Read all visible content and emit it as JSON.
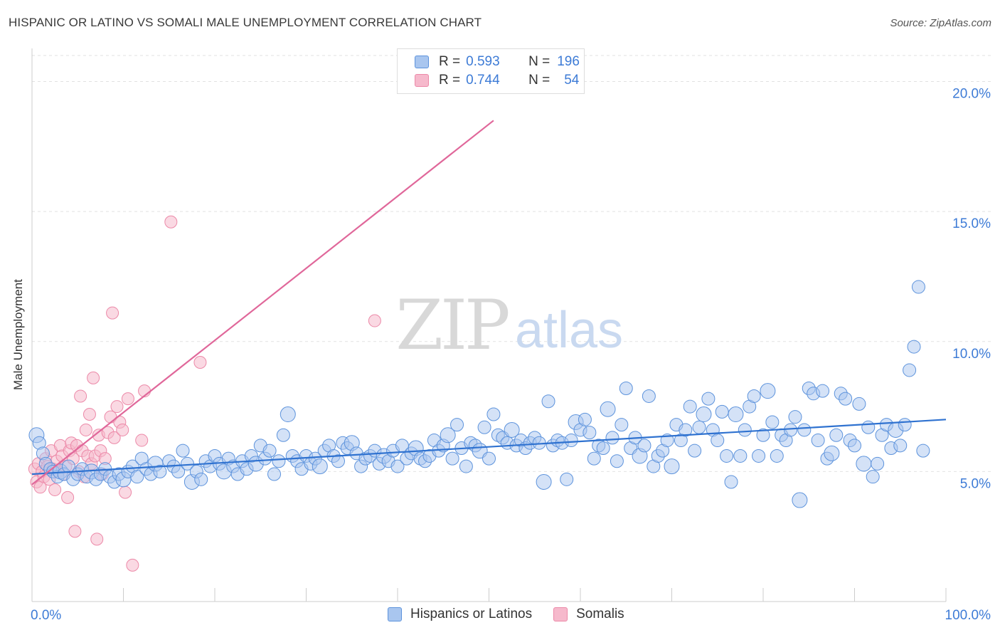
{
  "title": "HISPANIC OR LATINO VS SOMALI MALE UNEMPLOYMENT CORRELATION CHART",
  "source": "Source: ZipAtlas.com",
  "watermark": {
    "zip": "ZIP",
    "atlas": "atlas"
  },
  "legend": {
    "rows": [
      {
        "r_label": "R =",
        "r_value": "0.593",
        "n_label": "N =",
        "n_value": "196"
      },
      {
        "r_label": "R =",
        "r_value": "0.744",
        "n_label": "N =",
        "n_value": "54"
      }
    ]
  },
  "bottom_legend": [
    "Hispanics or Latinos",
    "Somalis"
  ],
  "colors": {
    "blue_fill": "#a9c6ef",
    "blue_stroke": "#5d93dc",
    "blue_line": "#2f72d0",
    "pink_fill": "#f6b9cc",
    "pink_stroke": "#ec89a8",
    "pink_line": "#e0679a",
    "tick_label": "#3d7bd6",
    "grid": "#e2e2e2"
  },
  "chart_data": {
    "type": "scatter",
    "title": "HISPANIC OR LATINO VS SOMALI MALE UNEMPLOYMENT CORRELATION CHART",
    "xlabel": "",
    "ylabel": "Male Unemployment",
    "xlim": [
      0,
      100
    ],
    "ylim": [
      0,
      21
    ],
    "x_tick_labels": [
      "0.0%",
      "100.0%"
    ],
    "y_ticks": [
      5,
      10,
      15,
      20
    ],
    "y_tick_labels": [
      "5.0%",
      "10.0%",
      "15.0%",
      "20.0%"
    ],
    "grid": true,
    "series": [
      {
        "name": "Hispanics or Latinos",
        "R": 0.593,
        "N": 196,
        "trend": {
          "x": [
            0,
            100
          ],
          "y": [
            4.9,
            7.0
          ]
        },
        "points": [
          [
            0.5,
            6.4
          ],
          [
            0.8,
            6.1
          ],
          [
            1.2,
            5.7
          ],
          [
            1.5,
            5.3
          ],
          [
            2,
            5.1
          ],
          [
            2.3,
            5.0
          ],
          [
            2.8,
            4.8
          ],
          [
            3.1,
            5.0
          ],
          [
            3.5,
            4.9
          ],
          [
            4,
            5.2
          ],
          [
            4.5,
            4.7
          ],
          [
            5,
            4.9
          ],
          [
            5.5,
            5.1
          ],
          [
            6,
            4.8
          ],
          [
            6.5,
            5.0
          ],
          [
            7,
            4.7
          ],
          [
            7.5,
            4.9
          ],
          [
            8,
            5.1
          ],
          [
            8.5,
            4.8
          ],
          [
            9,
            4.6
          ],
          [
            9.5,
            4.9
          ],
          [
            10,
            4.7
          ],
          [
            10.5,
            5.0
          ],
          [
            11,
            5.2
          ],
          [
            11.5,
            4.8
          ],
          [
            12,
            5.5
          ],
          [
            12.5,
            5.1
          ],
          [
            13,
            4.9
          ],
          [
            13.5,
            5.3
          ],
          [
            14,
            5.0
          ],
          [
            15,
            5.4
          ],
          [
            15.5,
            5.2
          ],
          [
            16,
            5.0
          ],
          [
            16.5,
            5.8
          ],
          [
            17,
            5.3
          ],
          [
            17.5,
            4.6
          ],
          [
            18,
            5.0
          ],
          [
            18.5,
            4.7
          ],
          [
            19,
            5.4
          ],
          [
            19.5,
            5.2
          ],
          [
            20,
            5.6
          ],
          [
            20.5,
            5.3
          ],
          [
            21,
            5.0
          ],
          [
            21.5,
            5.5
          ],
          [
            22,
            5.2
          ],
          [
            22.5,
            4.9
          ],
          [
            23,
            5.4
          ],
          [
            23.5,
            5.1
          ],
          [
            24,
            5.6
          ],
          [
            24.5,
            5.3
          ],
          [
            25,
            6.0
          ],
          [
            25.5,
            5.5
          ],
          [
            26,
            5.8
          ],
          [
            26.5,
            4.9
          ],
          [
            27,
            5.4
          ],
          [
            27.5,
            6.4
          ],
          [
            28,
            7.2
          ],
          [
            28.5,
            5.6
          ],
          [
            29,
            5.4
          ],
          [
            29.5,
            5.1
          ],
          [
            30,
            5.6
          ],
          [
            30.5,
            5.3
          ],
          [
            31,
            5.5
          ],
          [
            31.5,
            5.2
          ],
          [
            32,
            5.8
          ],
          [
            32.5,
            6.0
          ],
          [
            33,
            5.6
          ],
          [
            33.5,
            5.4
          ],
          [
            34,
            6.1
          ],
          [
            34.5,
            5.9
          ],
          [
            35,
            6.1
          ],
          [
            35.5,
            5.7
          ],
          [
            36,
            5.2
          ],
          [
            36.5,
            5.5
          ],
          [
            37,
            5.6
          ],
          [
            37.5,
            5.8
          ],
          [
            38,
            5.3
          ],
          [
            38.5,
            5.6
          ],
          [
            39,
            5.4
          ],
          [
            39.5,
            5.8
          ],
          [
            40,
            5.2
          ],
          [
            40.5,
            6.0
          ],
          [
            41,
            5.5
          ],
          [
            41.5,
            5.7
          ],
          [
            42,
            5.9
          ],
          [
            42.5,
            5.5
          ],
          [
            43,
            5.4
          ],
          [
            43.5,
            5.6
          ],
          [
            44,
            6.2
          ],
          [
            44.5,
            5.8
          ],
          [
            45,
            6.0
          ],
          [
            45.5,
            6.4
          ],
          [
            46,
            5.5
          ],
          [
            46.5,
            6.8
          ],
          [
            47,
            5.9
          ],
          [
            47.5,
            5.2
          ],
          [
            48,
            6.1
          ],
          [
            48.5,
            6.0
          ],
          [
            49,
            5.8
          ],
          [
            49.5,
            6.7
          ],
          [
            50,
            5.5
          ],
          [
            50.5,
            7.2
          ],
          [
            51,
            6.4
          ],
          [
            51.5,
            6.3
          ],
          [
            52,
            6.1
          ],
          [
            52.5,
            6.6
          ],
          [
            53,
            6.0
          ],
          [
            53.5,
            6.2
          ],
          [
            54,
            5.9
          ],
          [
            54.5,
            6.1
          ],
          [
            55,
            6.3
          ],
          [
            55.5,
            6.1
          ],
          [
            56,
            4.6
          ],
          [
            56.5,
            7.7
          ],
          [
            57,
            6.0
          ],
          [
            57.5,
            6.2
          ],
          [
            58,
            6.1
          ],
          [
            58.5,
            4.7
          ],
          [
            59,
            6.2
          ],
          [
            59.5,
            6.9
          ],
          [
            60,
            6.6
          ],
          [
            60.5,
            7.0
          ],
          [
            61,
            6.5
          ],
          [
            61.5,
            5.5
          ],
          [
            62,
            6.0
          ],
          [
            62.5,
            5.9
          ],
          [
            63,
            7.4
          ],
          [
            63.5,
            6.3
          ],
          [
            64,
            5.4
          ],
          [
            64.5,
            6.8
          ],
          [
            65,
            8.2
          ],
          [
            65.5,
            5.9
          ],
          [
            66,
            6.3
          ],
          [
            66.5,
            5.6
          ],
          [
            67,
            6.0
          ],
          [
            67.5,
            7.9
          ],
          [
            68,
            5.2
          ],
          [
            68.5,
            5.6
          ],
          [
            69,
            5.8
          ],
          [
            69.5,
            6.2
          ],
          [
            70,
            5.2
          ],
          [
            70.5,
            6.8
          ],
          [
            71,
            6.2
          ],
          [
            71.5,
            6.6
          ],
          [
            72,
            7.5
          ],
          [
            72.5,
            5.8
          ],
          [
            73,
            6.7
          ],
          [
            73.5,
            7.2
          ],
          [
            74,
            7.8
          ],
          [
            74.5,
            6.6
          ],
          [
            75,
            6.2
          ],
          [
            75.5,
            7.3
          ],
          [
            76,
            5.6
          ],
          [
            76.5,
            4.6
          ],
          [
            77,
            7.2
          ],
          [
            77.5,
            5.6
          ],
          [
            78,
            6.6
          ],
          [
            78.5,
            7.5
          ],
          [
            79,
            7.9
          ],
          [
            79.5,
            5.6
          ],
          [
            80,
            6.4
          ],
          [
            80.5,
            8.1
          ],
          [
            81,
            6.9
          ],
          [
            81.5,
            5.6
          ],
          [
            82,
            6.4
          ],
          [
            82.5,
            6.2
          ],
          [
            83,
            6.6
          ],
          [
            83.5,
            7.1
          ],
          [
            84,
            3.9
          ],
          [
            84.5,
            6.6
          ],
          [
            85,
            8.2
          ],
          [
            85.5,
            8.0
          ],
          [
            86,
            6.2
          ],
          [
            86.5,
            8.1
          ],
          [
            87,
            5.5
          ],
          [
            87.5,
            5.7
          ],
          [
            88,
            6.4
          ],
          [
            88.5,
            8.0
          ],
          [
            89,
            7.8
          ],
          [
            89.5,
            6.2
          ],
          [
            90,
            6.0
          ],
          [
            90.5,
            7.6
          ],
          [
            91,
            5.3
          ],
          [
            91.5,
            6.7
          ],
          [
            92,
            4.8
          ],
          [
            92.5,
            5.3
          ],
          [
            93,
            6.4
          ],
          [
            93.5,
            6.8
          ],
          [
            94,
            5.9
          ],
          [
            94.5,
            6.6
          ],
          [
            95,
            6.0
          ],
          [
            95.5,
            6.8
          ],
          [
            96,
            8.9
          ],
          [
            96.5,
            9.8
          ],
          [
            97,
            12.1
          ],
          [
            97.5,
            5.8
          ]
        ]
      },
      {
        "name": "Somalis",
        "R": 0.744,
        "N": 54,
        "trend": {
          "x": [
            0,
            50.5
          ],
          "y": [
            4.5,
            18.5
          ]
        },
        "trend_dashed": {
          "x": [
            50.5,
            100
          ],
          "y": [
            18.5,
            32.1
          ]
        },
        "points": [
          [
            0.3,
            5.1
          ],
          [
            0.5,
            4.6
          ],
          [
            0.7,
            5.3
          ],
          [
            0.9,
            4.4
          ],
          [
            1.1,
            5.0
          ],
          [
            1.3,
            4.8
          ],
          [
            1.5,
            5.5
          ],
          [
            1.7,
            5.2
          ],
          [
            1.9,
            4.7
          ],
          [
            2.1,
            5.8
          ],
          [
            2.3,
            5.1
          ],
          [
            2.5,
            4.3
          ],
          [
            2.7,
            5.4
          ],
          [
            2.9,
            5.0
          ],
          [
            3.1,
            6.0
          ],
          [
            3.3,
            5.6
          ],
          [
            3.5,
            4.9
          ],
          [
            3.7,
            5.2
          ],
          [
            3.9,
            4.0
          ],
          [
            4.1,
            5.8
          ],
          [
            4.3,
            6.1
          ],
          [
            4.5,
            5.5
          ],
          [
            4.7,
            2.7
          ],
          [
            4.9,
            6.0
          ],
          [
            5.1,
            5.0
          ],
          [
            5.3,
            7.9
          ],
          [
            5.5,
            5.8
          ],
          [
            5.7,
            4.8
          ],
          [
            5.9,
            6.6
          ],
          [
            6.1,
            5.6
          ],
          [
            6.3,
            7.2
          ],
          [
            6.5,
            5.3
          ],
          [
            6.7,
            8.6
          ],
          [
            6.9,
            5.6
          ],
          [
            7.1,
            2.4
          ],
          [
            7.3,
            6.4
          ],
          [
            7.5,
            5.8
          ],
          [
            7.7,
            4.9
          ],
          [
            8,
            5.5
          ],
          [
            8.3,
            6.5
          ],
          [
            8.6,
            7.1
          ],
          [
            8.8,
            11.1
          ],
          [
            9,
            6.3
          ],
          [
            9.3,
            7.5
          ],
          [
            9.6,
            6.9
          ],
          [
            9.9,
            6.6
          ],
          [
            10.2,
            4.2
          ],
          [
            10.5,
            7.8
          ],
          [
            11,
            1.4
          ],
          [
            12,
            6.2
          ],
          [
            12.3,
            8.1
          ],
          [
            15.2,
            14.6
          ],
          [
            18.4,
            9.2
          ],
          [
            37.5,
            10.8
          ]
        ]
      }
    ]
  }
}
